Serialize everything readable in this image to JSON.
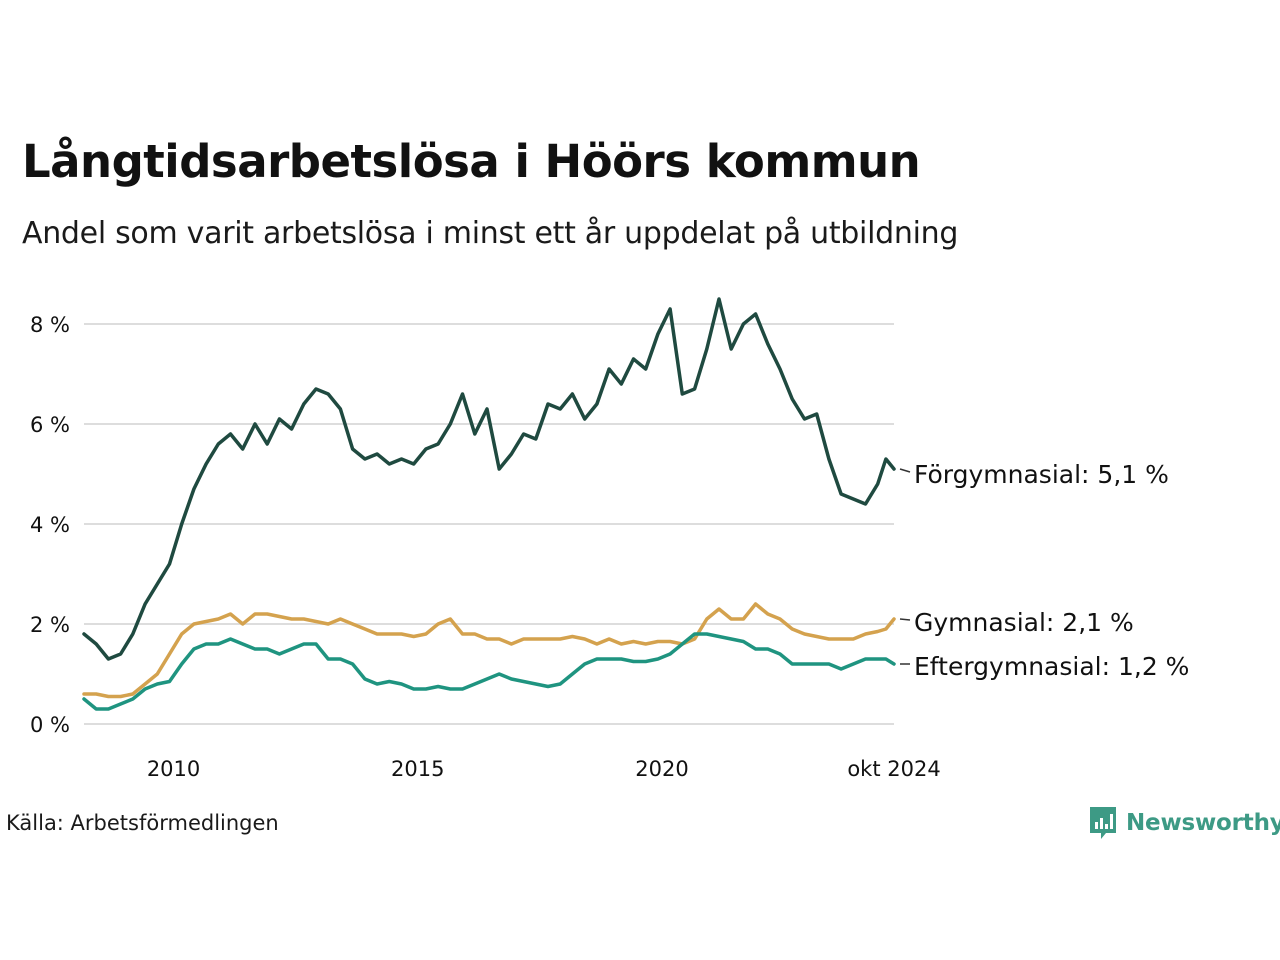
{
  "title": "Långtidsarbetslösa i Höörs kommun",
  "subtitle": "Andel som varit arbetslösa i minst ett år uppdelat på utbildning",
  "source": "Källa: Arbetsförmedlingen",
  "brand": "Newsworthy",
  "colors": {
    "forgymnasial": "#1f4a40",
    "gymnasial": "#d4a24e",
    "eftergymnasial": "#1f9480",
    "grid": "#dddddd",
    "brand": "#3d9a85"
  },
  "chart_data": {
    "type": "line",
    "x_start": "2008-03",
    "x_end": "2024-10",
    "ylim": [
      0,
      8.8
    ],
    "y_ticks": [
      0,
      2,
      4,
      6,
      8
    ],
    "y_tick_labels": [
      "0 %",
      "2 %",
      "4 %",
      "6 %",
      "8 %"
    ],
    "x_ticks": [
      "2010",
      "2015",
      "2020",
      "okt 2024"
    ],
    "x_tick_dates": [
      "2010-01",
      "2015-01",
      "2020-01",
      "2024-10"
    ],
    "grid": true,
    "legend": "direct labels at right end of lines",
    "series": [
      {
        "name": "Förgymnasial",
        "end_label": "Förgymnasial: 5,1 %",
        "color_key": "forgymnasial",
        "points": [
          [
            "2008-03",
            1.8
          ],
          [
            "2008-06",
            1.6
          ],
          [
            "2008-09",
            1.3
          ],
          [
            "2008-12",
            1.4
          ],
          [
            "2009-03",
            1.8
          ],
          [
            "2009-06",
            2.4
          ],
          [
            "2009-09",
            2.8
          ],
          [
            "2009-12",
            3.2
          ],
          [
            "2010-03",
            4.0
          ],
          [
            "2010-06",
            4.7
          ],
          [
            "2010-09",
            5.2
          ],
          [
            "2010-12",
            5.6
          ],
          [
            "2011-03",
            5.8
          ],
          [
            "2011-06",
            5.5
          ],
          [
            "2011-09",
            6.0
          ],
          [
            "2011-12",
            5.6
          ],
          [
            "2012-03",
            6.1
          ],
          [
            "2012-06",
            5.9
          ],
          [
            "2012-09",
            6.4
          ],
          [
            "2012-12",
            6.7
          ],
          [
            "2013-03",
            6.6
          ],
          [
            "2013-06",
            6.3
          ],
          [
            "2013-09",
            5.5
          ],
          [
            "2013-12",
            5.3
          ],
          [
            "2014-03",
            5.4
          ],
          [
            "2014-06",
            5.2
          ],
          [
            "2014-09",
            5.3
          ],
          [
            "2014-12",
            5.2
          ],
          [
            "2015-03",
            5.5
          ],
          [
            "2015-06",
            5.6
          ],
          [
            "2015-09",
            6.0
          ],
          [
            "2015-12",
            6.6
          ],
          [
            "2016-03",
            5.8
          ],
          [
            "2016-06",
            6.3
          ],
          [
            "2016-09",
            5.1
          ],
          [
            "2016-12",
            5.4
          ],
          [
            "2017-03",
            5.8
          ],
          [
            "2017-06",
            5.7
          ],
          [
            "2017-09",
            6.4
          ],
          [
            "2017-12",
            6.3
          ],
          [
            "2018-03",
            6.6
          ],
          [
            "2018-06",
            6.1
          ],
          [
            "2018-09",
            6.4
          ],
          [
            "2018-12",
            7.1
          ],
          [
            "2019-03",
            6.8
          ],
          [
            "2019-06",
            7.3
          ],
          [
            "2019-09",
            7.1
          ],
          [
            "2019-12",
            7.8
          ],
          [
            "2020-03",
            8.3
          ],
          [
            "2020-06",
            6.6
          ],
          [
            "2020-09",
            6.7
          ],
          [
            "2020-12",
            7.5
          ],
          [
            "2021-03",
            8.5
          ],
          [
            "2021-06",
            7.5
          ],
          [
            "2021-09",
            8.0
          ],
          [
            "2021-12",
            8.2
          ],
          [
            "2022-03",
            7.6
          ],
          [
            "2022-06",
            7.1
          ],
          [
            "2022-09",
            6.5
          ],
          [
            "2022-12",
            6.1
          ],
          [
            "2023-03",
            6.2
          ],
          [
            "2023-06",
            5.3
          ],
          [
            "2023-09",
            4.6
          ],
          [
            "2023-12",
            4.5
          ],
          [
            "2024-03",
            4.4
          ],
          [
            "2024-06",
            4.8
          ],
          [
            "2024-08",
            5.3
          ],
          [
            "2024-10",
            5.1
          ]
        ]
      },
      {
        "name": "Gymnasial",
        "end_label": "Gymnasial: 2,1 %",
        "color_key": "gymnasial",
        "points": [
          [
            "2008-03",
            0.6
          ],
          [
            "2008-06",
            0.6
          ],
          [
            "2008-09",
            0.55
          ],
          [
            "2008-12",
            0.55
          ],
          [
            "2009-03",
            0.6
          ],
          [
            "2009-06",
            0.8
          ],
          [
            "2009-09",
            1.0
          ],
          [
            "2009-12",
            1.4
          ],
          [
            "2010-03",
            1.8
          ],
          [
            "2010-06",
            2.0
          ],
          [
            "2010-09",
            2.05
          ],
          [
            "2010-12",
            2.1
          ],
          [
            "2011-03",
            2.2
          ],
          [
            "2011-06",
            2.0
          ],
          [
            "2011-09",
            2.2
          ],
          [
            "2011-12",
            2.2
          ],
          [
            "2012-03",
            2.15
          ],
          [
            "2012-06",
            2.1
          ],
          [
            "2012-09",
            2.1
          ],
          [
            "2012-12",
            2.05
          ],
          [
            "2013-03",
            2.0
          ],
          [
            "2013-06",
            2.1
          ],
          [
            "2013-09",
            2.0
          ],
          [
            "2013-12",
            1.9
          ],
          [
            "2014-03",
            1.8
          ],
          [
            "2014-06",
            1.8
          ],
          [
            "2014-09",
            1.8
          ],
          [
            "2014-12",
            1.75
          ],
          [
            "2015-03",
            1.8
          ],
          [
            "2015-06",
            2.0
          ],
          [
            "2015-09",
            2.1
          ],
          [
            "2015-12",
            1.8
          ],
          [
            "2016-03",
            1.8
          ],
          [
            "2016-06",
            1.7
          ],
          [
            "2016-09",
            1.7
          ],
          [
            "2016-12",
            1.6
          ],
          [
            "2017-03",
            1.7
          ],
          [
            "2017-06",
            1.7
          ],
          [
            "2017-09",
            1.7
          ],
          [
            "2017-12",
            1.7
          ],
          [
            "2018-03",
            1.75
          ],
          [
            "2018-06",
            1.7
          ],
          [
            "2018-09",
            1.6
          ],
          [
            "2018-12",
            1.7
          ],
          [
            "2019-03",
            1.6
          ],
          [
            "2019-06",
            1.65
          ],
          [
            "2019-09",
            1.6
          ],
          [
            "2019-12",
            1.65
          ],
          [
            "2020-03",
            1.65
          ],
          [
            "2020-06",
            1.6
          ],
          [
            "2020-09",
            1.7
          ],
          [
            "2020-12",
            2.1
          ],
          [
            "2021-03",
            2.3
          ],
          [
            "2021-06",
            2.1
          ],
          [
            "2021-09",
            2.1
          ],
          [
            "2021-12",
            2.4
          ],
          [
            "2022-03",
            2.2
          ],
          [
            "2022-06",
            2.1
          ],
          [
            "2022-09",
            1.9
          ],
          [
            "2022-12",
            1.8
          ],
          [
            "2023-03",
            1.75
          ],
          [
            "2023-06",
            1.7
          ],
          [
            "2023-09",
            1.7
          ],
          [
            "2023-12",
            1.7
          ],
          [
            "2024-03",
            1.8
          ],
          [
            "2024-06",
            1.85
          ],
          [
            "2024-08",
            1.9
          ],
          [
            "2024-10",
            2.1
          ]
        ]
      },
      {
        "name": "Eftergymnasial",
        "end_label": "Eftergymnasial: 1,2 %",
        "color_key": "eftergymnasial",
        "points": [
          [
            "2008-03",
            0.5
          ],
          [
            "2008-06",
            0.3
          ],
          [
            "2008-09",
            0.3
          ],
          [
            "2008-12",
            0.4
          ],
          [
            "2009-03",
            0.5
          ],
          [
            "2009-06",
            0.7
          ],
          [
            "2009-09",
            0.8
          ],
          [
            "2009-12",
            0.85
          ],
          [
            "2010-03",
            1.2
          ],
          [
            "2010-06",
            1.5
          ],
          [
            "2010-09",
            1.6
          ],
          [
            "2010-12",
            1.6
          ],
          [
            "2011-03",
            1.7
          ],
          [
            "2011-06",
            1.6
          ],
          [
            "2011-09",
            1.5
          ],
          [
            "2011-12",
            1.5
          ],
          [
            "2012-03",
            1.4
          ],
          [
            "2012-06",
            1.5
          ],
          [
            "2012-09",
            1.6
          ],
          [
            "2012-12",
            1.6
          ],
          [
            "2013-03",
            1.3
          ],
          [
            "2013-06",
            1.3
          ],
          [
            "2013-09",
            1.2
          ],
          [
            "2013-12",
            0.9
          ],
          [
            "2014-03",
            0.8
          ],
          [
            "2014-06",
            0.85
          ],
          [
            "2014-09",
            0.8
          ],
          [
            "2014-12",
            0.7
          ],
          [
            "2015-03",
            0.7
          ],
          [
            "2015-06",
            0.75
          ],
          [
            "2015-09",
            0.7
          ],
          [
            "2015-12",
            0.7
          ],
          [
            "2016-03",
            0.8
          ],
          [
            "2016-06",
            0.9
          ],
          [
            "2016-09",
            1.0
          ],
          [
            "2016-12",
            0.9
          ],
          [
            "2017-03",
            0.85
          ],
          [
            "2017-06",
            0.8
          ],
          [
            "2017-09",
            0.75
          ],
          [
            "2017-12",
            0.8
          ],
          [
            "2018-03",
            1.0
          ],
          [
            "2018-06",
            1.2
          ],
          [
            "2018-09",
            1.3
          ],
          [
            "2018-12",
            1.3
          ],
          [
            "2019-03",
            1.3
          ],
          [
            "2019-06",
            1.25
          ],
          [
            "2019-09",
            1.25
          ],
          [
            "2019-12",
            1.3
          ],
          [
            "2020-03",
            1.4
          ],
          [
            "2020-06",
            1.6
          ],
          [
            "2020-09",
            1.8
          ],
          [
            "2020-12",
            1.8
          ],
          [
            "2021-03",
            1.75
          ],
          [
            "2021-06",
            1.7
          ],
          [
            "2021-09",
            1.65
          ],
          [
            "2021-12",
            1.5
          ],
          [
            "2022-03",
            1.5
          ],
          [
            "2022-06",
            1.4
          ],
          [
            "2022-09",
            1.2
          ],
          [
            "2022-12",
            1.2
          ],
          [
            "2023-03",
            1.2
          ],
          [
            "2023-06",
            1.2
          ],
          [
            "2023-09",
            1.1
          ],
          [
            "2023-12",
            1.2
          ],
          [
            "2024-03",
            1.3
          ],
          [
            "2024-06",
            1.3
          ],
          [
            "2024-08",
            1.3
          ],
          [
            "2024-10",
            1.2
          ]
        ]
      }
    ]
  }
}
